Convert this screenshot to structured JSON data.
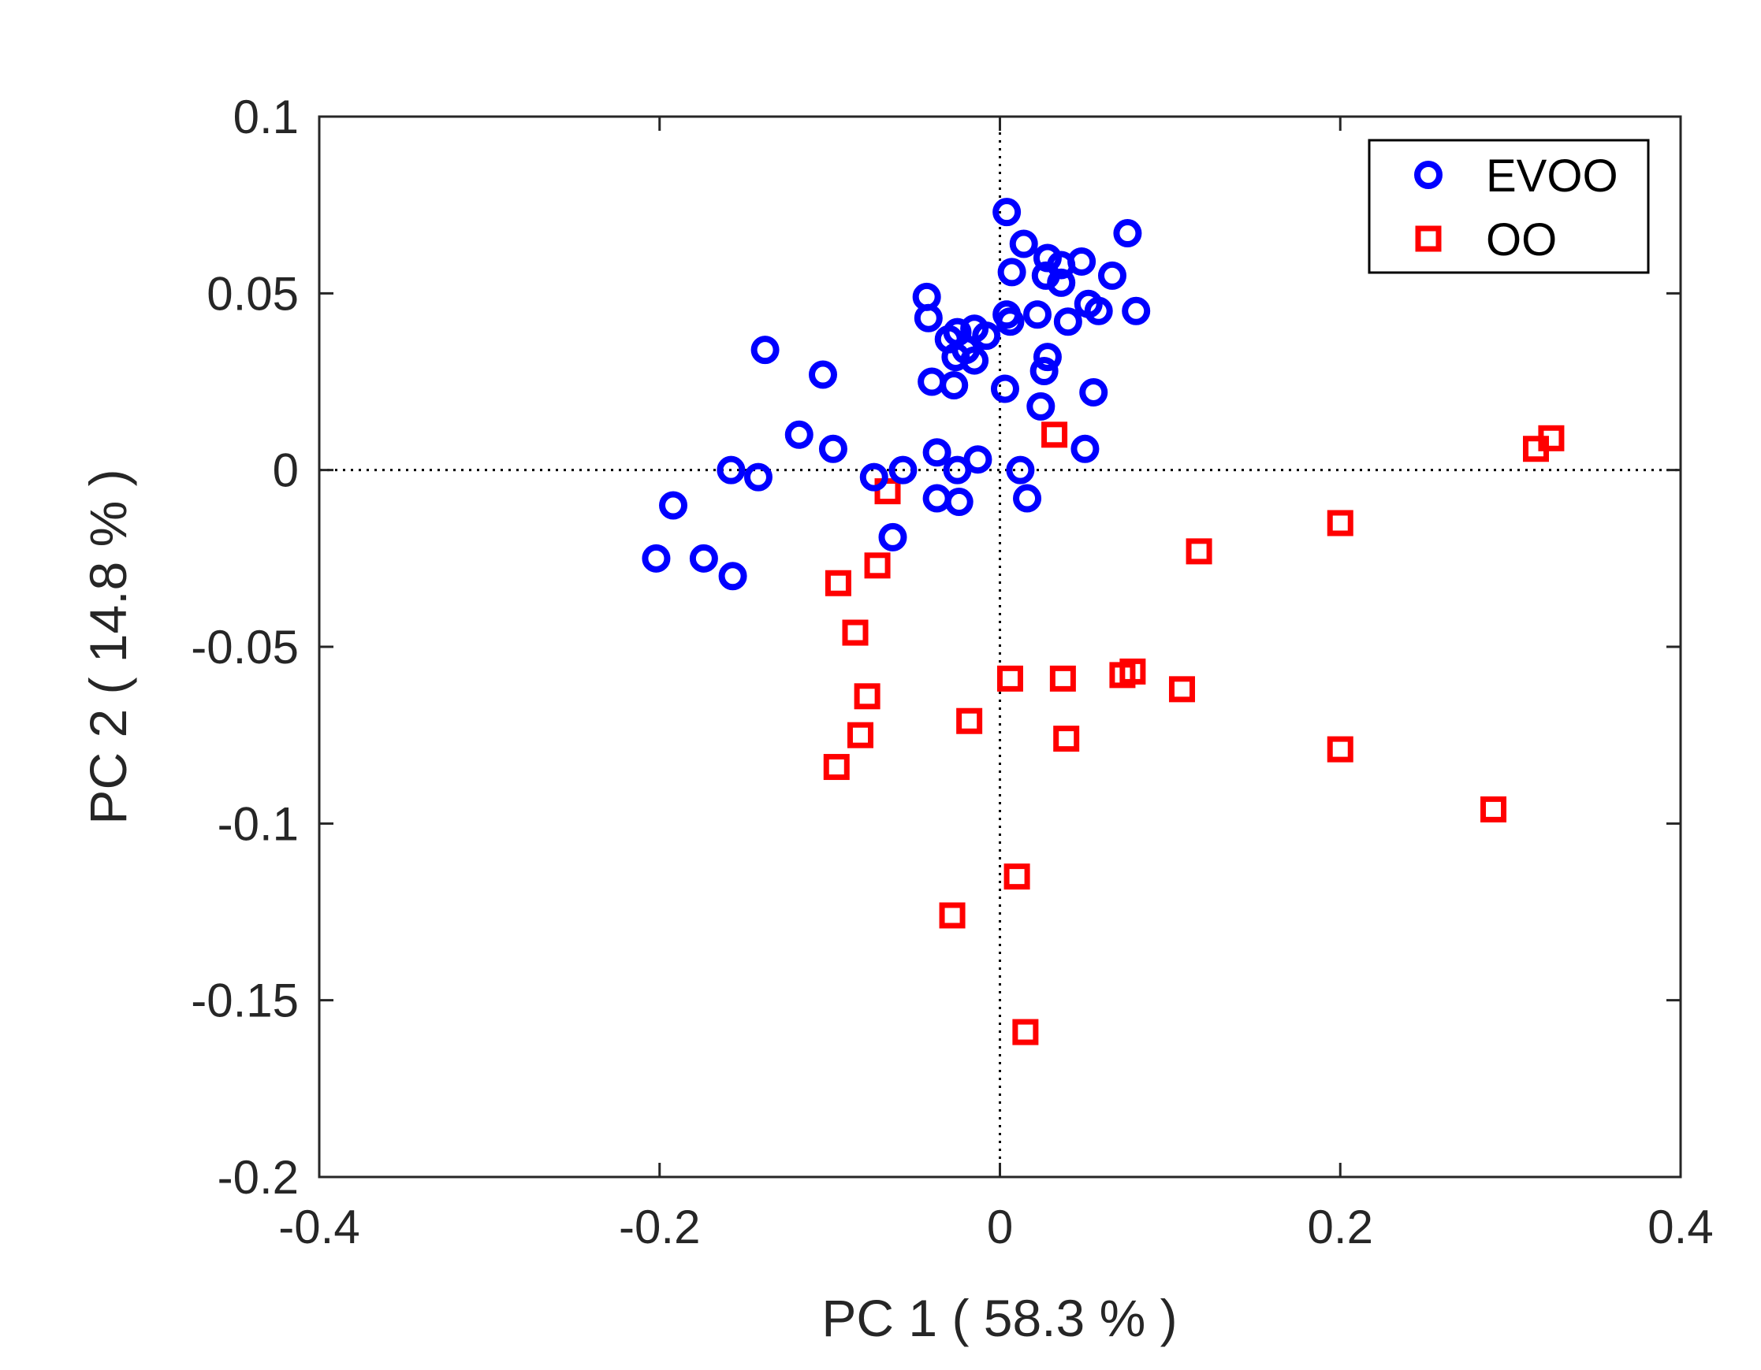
{
  "chart_data": {
    "type": "scatter",
    "xlabel": "PC 1  ( 58.3 % )",
    "ylabel": "PC 2  ( 14.8 % )",
    "xlim": [
      -0.4,
      0.4
    ],
    "ylim": [
      -0.2,
      0.1
    ],
    "xticks": [
      -0.4,
      -0.2,
      0,
      0.2,
      0.4
    ],
    "xtick_labels": [
      "-0.4",
      "-0.2",
      "0",
      "0.2",
      "0.4"
    ],
    "yticks": [
      -0.2,
      -0.15,
      -0.1,
      -0.05,
      0,
      0.05,
      0.1
    ],
    "ytick_labels": [
      "-0.2",
      "-0.15",
      "-0.1",
      "-0.05",
      "0",
      "0.05",
      "0.1"
    ],
    "grid": false,
    "zero_lines": true,
    "legend_position": "top-right",
    "series": [
      {
        "name": "EVOO",
        "marker": "circle",
        "color": "#0000ff",
        "points": [
          [
            0.004,
            0.073
          ],
          [
            0.014,
            0.064
          ],
          [
            0.028,
            0.06
          ],
          [
            0.036,
            0.058
          ],
          [
            0.048,
            0.059
          ],
          [
            0.075,
            0.067
          ],
          [
            0.007,
            0.056
          ],
          [
            0.027,
            0.055
          ],
          [
            0.036,
            0.053
          ],
          [
            0.066,
            0.055
          ],
          [
            -0.043,
            0.049
          ],
          [
            -0.042,
            0.043
          ],
          [
            0.004,
            0.044
          ],
          [
            0.022,
            0.044
          ],
          [
            0.04,
            0.042
          ],
          [
            0.052,
            0.047
          ],
          [
            0.058,
            0.045
          ],
          [
            0.08,
            0.045
          ],
          [
            0.006,
            0.042
          ],
          [
            -0.03,
            0.037
          ],
          [
            -0.025,
            0.039
          ],
          [
            -0.015,
            0.04
          ],
          [
            -0.008,
            0.038
          ],
          [
            -0.02,
            0.034
          ],
          [
            -0.026,
            0.032
          ],
          [
            -0.015,
            0.031
          ],
          [
            -0.138,
            0.034
          ],
          [
            -0.104,
            0.027
          ],
          [
            0.028,
            0.032
          ],
          [
            0.026,
            0.028
          ],
          [
            -0.04,
            0.025
          ],
          [
            -0.027,
            0.024
          ],
          [
            0.003,
            0.023
          ],
          [
            0.055,
            0.022
          ],
          [
            0.024,
            0.018
          ],
          [
            -0.118,
            0.01
          ],
          [
            -0.098,
            0.006
          ],
          [
            -0.037,
            0.005
          ],
          [
            0.05,
            0.006
          ],
          [
            -0.158,
            0.0
          ],
          [
            -0.142,
            -0.002
          ],
          [
            -0.074,
            -0.002
          ],
          [
            -0.057,
            0.0
          ],
          [
            -0.025,
            0.0
          ],
          [
            -0.013,
            0.003
          ],
          [
            0.012,
            0.0
          ],
          [
            -0.037,
            -0.008
          ],
          [
            -0.024,
            -0.009
          ],
          [
            0.016,
            -0.008
          ],
          [
            -0.192,
            -0.01
          ],
          [
            -0.063,
            -0.019
          ],
          [
            -0.202,
            -0.025
          ],
          [
            -0.174,
            -0.025
          ],
          [
            -0.157,
            -0.03
          ]
        ]
      },
      {
        "name": "OO",
        "marker": "square",
        "color": "#ff0000",
        "points": [
          [
            0.032,
            0.01
          ],
          [
            0.315,
            0.006
          ],
          [
            0.324,
            0.009
          ],
          [
            -0.066,
            -0.006
          ],
          [
            0.2,
            -0.015
          ],
          [
            0.117,
            -0.023
          ],
          [
            -0.095,
            -0.032
          ],
          [
            -0.072,
            -0.027
          ],
          [
            -0.085,
            -0.046
          ],
          [
            0.006,
            -0.059
          ],
          [
            0.037,
            -0.059
          ],
          [
            0.072,
            -0.058
          ],
          [
            0.078,
            -0.057
          ],
          [
            0.107,
            -0.062
          ],
          [
            -0.078,
            -0.064
          ],
          [
            -0.018,
            -0.071
          ],
          [
            -0.082,
            -0.075
          ],
          [
            0.039,
            -0.076
          ],
          [
            0.2,
            -0.079
          ],
          [
            -0.096,
            -0.084
          ],
          [
            0.29,
            -0.096
          ],
          [
            0.01,
            -0.115
          ],
          [
            -0.028,
            -0.126
          ],
          [
            0.015,
            -0.159
          ]
        ]
      }
    ]
  },
  "colors": {
    "evoo": "#0000ff",
    "oo": "#ff0000",
    "axis": "#262626",
    "background": "#ffffff"
  }
}
